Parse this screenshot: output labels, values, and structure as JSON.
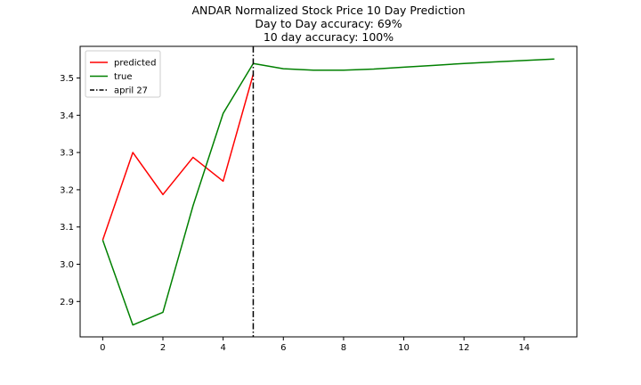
{
  "chart_data": {
    "type": "line",
    "title_lines": [
      "ANDAR Normalized Stock Price 10 Day Prediction",
      "Day to Day accuracy: 69%",
      "10 day accuracy: 100%"
    ],
    "xlabel": "",
    "ylabel": "",
    "xlim": [
      -0.75,
      15.75
    ],
    "ylim": [
      2.805,
      3.585
    ],
    "x_ticks": [
      0,
      2,
      4,
      6,
      8,
      10,
      12,
      14
    ],
    "x_tick_labels": [
      "0",
      "2",
      "4",
      "6",
      "8",
      "10",
      "12",
      "14"
    ],
    "y_ticks": [
      2.9,
      3.0,
      3.1,
      3.2,
      3.3,
      3.4,
      3.5
    ],
    "y_tick_labels": [
      "2.9",
      "3.0",
      "3.1",
      "3.2",
      "3.3",
      "3.4",
      "3.5"
    ],
    "grid": false,
    "legend_position": "top-left",
    "series": [
      {
        "name": "predicted",
        "color": "#ff0000",
        "x": [
          0,
          1,
          2,
          3,
          4,
          5
        ],
        "y": [
          3.065,
          3.3,
          3.187,
          3.287,
          3.223,
          3.51
        ]
      },
      {
        "name": "true",
        "color": "#008000",
        "x": [
          0,
          1,
          2,
          3,
          4,
          5,
          6,
          7,
          8,
          9,
          10,
          11,
          12,
          13,
          14,
          15
        ],
        "y": [
          3.065,
          2.837,
          2.871,
          3.157,
          3.405,
          3.539,
          3.525,
          3.521,
          3.521,
          3.524,
          3.529,
          3.534,
          3.539,
          3.543,
          3.547,
          3.551
        ]
      }
    ],
    "vlines": [
      {
        "name": "april 27",
        "x": 5,
        "color": "#000000",
        "style": "dashdot"
      }
    ]
  }
}
